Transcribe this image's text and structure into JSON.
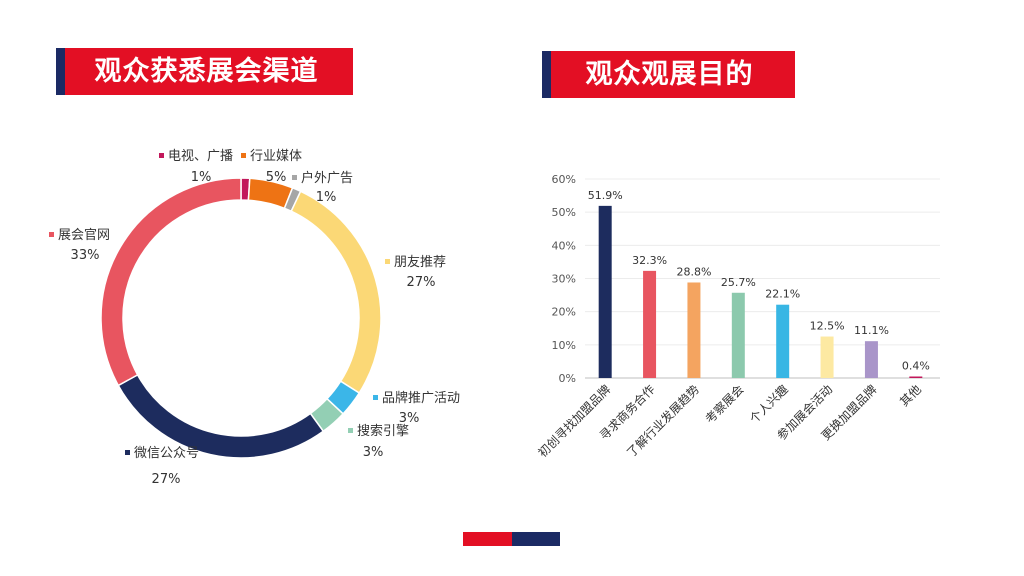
{
  "left_title": "观众获悉展会渠道",
  "right_title": "观众观展目的",
  "chart_data": [
    {
      "type": "pie",
      "variant": "donut",
      "title": "观众获悉展会渠道",
      "slices": [
        {
          "label": "电视、广播",
          "value": 1,
          "pct_label": "1%",
          "color": "#c2185b"
        },
        {
          "label": "行业媒体",
          "value": 5,
          "pct_label": "5%",
          "color": "#ee7314"
        },
        {
          "label": "户外广告",
          "value": 1,
          "pct_label": "1%",
          "color": "#a6a6a6"
        },
        {
          "label": "朋友推荐",
          "value": 27,
          "pct_label": "27%",
          "color": "#fbd876"
        },
        {
          "label": "品牌推广活动",
          "value": 3,
          "pct_label": "3%",
          "color": "#3bb6e8"
        },
        {
          "label": "搜索引擎",
          "value": 3,
          "pct_label": "3%",
          "color": "#93cfb4"
        },
        {
          "label": "微信公众号",
          "value": 27,
          "pct_label": "27%",
          "color": "#1d2c5e"
        },
        {
          "label": "展会官网",
          "value": 33,
          "pct_label": "33%",
          "color": "#e85560"
        }
      ]
    },
    {
      "type": "bar",
      "title": "观众观展目的",
      "categories": [
        "初创寻找加盟品牌",
        "寻求商务合作",
        "了解行业发展趋势",
        "考察展会",
        "个人兴趣",
        "参加展会活动",
        "更换加盟品牌",
        "其他"
      ],
      "values": [
        51.9,
        32.3,
        28.8,
        25.7,
        22.1,
        12.5,
        11.1,
        0.4
      ],
      "value_labels": [
        "51.9%",
        "32.3%",
        "28.8%",
        "25.7%",
        "22.1%",
        "12.5%",
        "11.1%",
        "0.4%"
      ],
      "colors": [
        "#1d2c5e",
        "#e85560",
        "#f4a460",
        "#8cc9ad",
        "#38b6e4",
        "#fde9a2",
        "#a995c9",
        "#c2185b"
      ],
      "ylim": [
        0,
        60
      ],
      "yticks": [
        "0%",
        "10%",
        "20%",
        "30%",
        "40%",
        "50%",
        "60%"
      ],
      "grid": true,
      "xlabel": "",
      "ylabel": ""
    }
  ],
  "colors": {
    "banner_red": "#e30f24",
    "banner_navy": "#1b2a64"
  }
}
